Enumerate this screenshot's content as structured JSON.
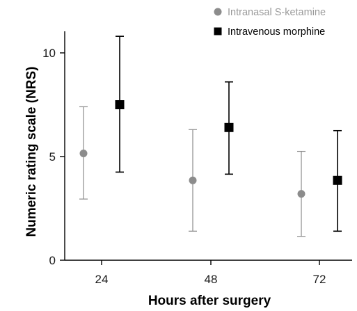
{
  "chart_data": {
    "type": "scatter",
    "title": "",
    "xlabel": "Hours after surgery",
    "ylabel": "Numeric rating scale (NRS)",
    "categories": [
      "24",
      "48",
      "72"
    ],
    "y_ticks": [
      "0",
      "5",
      "10"
    ],
    "ylim": [
      0,
      11
    ],
    "grid": false,
    "legend_position": "top-right",
    "series": [
      {
        "name": "Intranasal S-ketamine",
        "marker": "circle",
        "color": "#8c8c8c",
        "values": [
          5.15,
          3.85,
          3.2
        ],
        "upper": [
          7.4,
          6.3,
          5.25
        ],
        "lower": [
          2.95,
          1.4,
          1.15
        ]
      },
      {
        "name": "Intravenous morphine",
        "marker": "square",
        "color": "#000000",
        "values": [
          7.5,
          6.4,
          3.85
        ],
        "upper": [
          10.8,
          8.6,
          6.25
        ],
        "lower": [
          4.25,
          4.15,
          1.4
        ]
      }
    ]
  }
}
